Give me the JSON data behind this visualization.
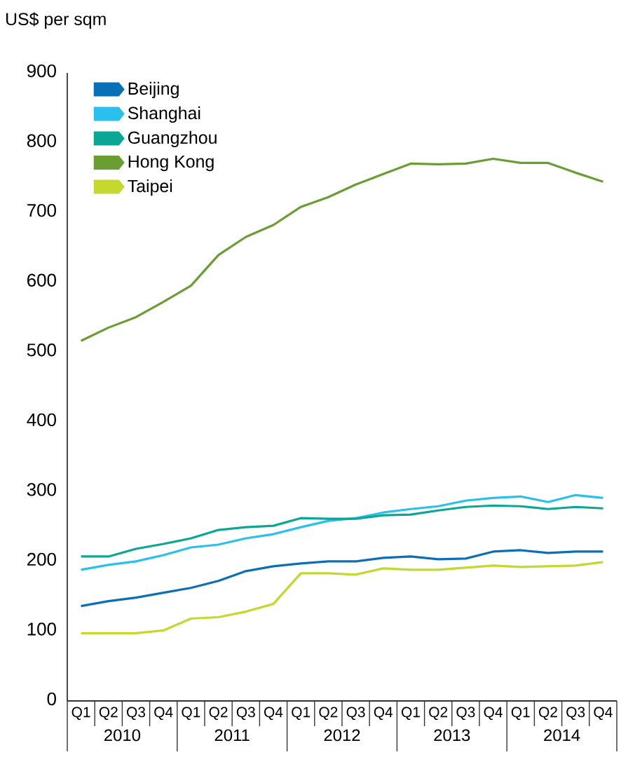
{
  "chart_data": {
    "type": "line",
    "ylabel": "US$ per sqm",
    "categories": [
      "Q1",
      "Q2",
      "Q3",
      "Q4",
      "Q1",
      "Q2",
      "Q3",
      "Q4",
      "Q1",
      "Q2",
      "Q3",
      "Q4",
      "Q1",
      "Q2",
      "Q3",
      "Q4",
      "Q1",
      "Q2",
      "Q3",
      "Q4"
    ],
    "annotations": [
      "2010",
      "2011",
      "2012",
      "2013",
      "2014"
    ],
    "ylim": [
      0,
      900
    ],
    "yticks": [
      0,
      100,
      200,
      300,
      400,
      500,
      600,
      700,
      800,
      900
    ],
    "legend": "top left",
    "grid": false,
    "marker": "none",
    "line_style": "solid",
    "series": [
      {
        "name": "Beijing",
        "color": "#0b6fb8",
        "values": [
          136,
          143,
          148,
          155,
          162,
          172,
          186,
          193,
          197,
          200,
          200,
          205,
          207,
          203,
          204,
          214,
          216,
          212,
          214,
          214
        ]
      },
      {
        "name": "Shanghai",
        "color": "#29c0ef",
        "values": [
          188,
          195,
          200,
          209,
          220,
          224,
          233,
          239,
          249,
          258,
          262,
          270,
          275,
          279,
          287,
          291,
          293,
          285,
          295,
          291
        ]
      },
      {
        "name": "Guangzhou",
        "color": "#0aa795",
        "values": [
          207,
          207,
          218,
          225,
          233,
          245,
          249,
          251,
          262,
          261,
          261,
          266,
          267,
          273,
          278,
          280,
          279,
          275,
          278,
          276
        ]
      },
      {
        "name": "Hong Kong",
        "color": "#6a9e32",
        "values": [
          516,
          535,
          550,
          572,
          595,
          639,
          665,
          682,
          708,
          722,
          740,
          755,
          770,
          769,
          770,
          777,
          771,
          771,
          757,
          744
        ]
      },
      {
        "name": "Taipei",
        "color": "#c5d82e",
        "values": [
          97,
          97,
          97,
          101,
          118,
          120,
          128,
          139,
          183,
          183,
          181,
          190,
          188,
          188,
          191,
          194,
          192,
          193,
          194,
          199
        ]
      }
    ]
  }
}
